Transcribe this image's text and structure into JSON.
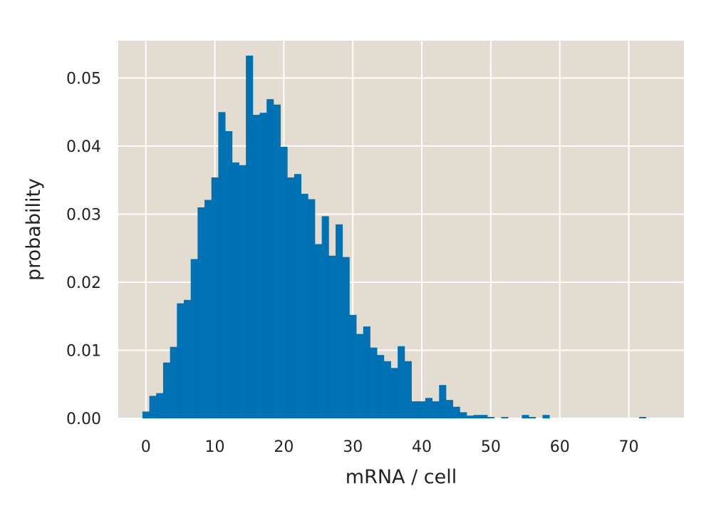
{
  "chart_data": {
    "type": "bar",
    "xlabel": "mRNA / cell",
    "ylabel": "probability",
    "xlim": [
      -4,
      78
    ],
    "ylim": [
      0,
      0.0555
    ],
    "xticks": [
      0,
      10,
      20,
      30,
      40,
      50,
      60,
      70
    ],
    "yticks": [
      0.0,
      0.01,
      0.02,
      0.03,
      0.04,
      0.05
    ],
    "ytick_labels": [
      "0.00",
      "0.01",
      "0.02",
      "0.03",
      "0.04",
      "0.05"
    ],
    "grid": true,
    "bin_start": -0.5,
    "bin_width": 1,
    "values": [
      0.001,
      0.0033,
      0.0037,
      0.0082,
      0.0105,
      0.0169,
      0.0174,
      0.0234,
      0.031,
      0.0321,
      0.0354,
      0.045,
      0.0422,
      0.0376,
      0.0372,
      0.0533,
      0.0446,
      0.0449,
      0.0469,
      0.0461,
      0.0399,
      0.0354,
      0.0359,
      0.033,
      0.0322,
      0.0256,
      0.0297,
      0.0239,
      0.0285,
      0.0237,
      0.0152,
      0.0124,
      0.0135,
      0.0104,
      0.0093,
      0.0084,
      0.0074,
      0.0106,
      0.0084,
      0.0025,
      0.0025,
      0.003,
      0.0025,
      0.0049,
      0.0027,
      0.0017,
      0.0009,
      0.0004,
      0.0005,
      0.0005,
      0.0002,
      0.0,
      0.0002,
      0.0,
      0.0,
      0.0005,
      0.0002,
      0.0,
      0.0005,
      0,
      0,
      0,
      0,
      0,
      0,
      0,
      0,
      0,
      0,
      0,
      0,
      0,
      0.0002
    ],
    "colors": {
      "bar": "#0071b2",
      "background": "#e3dcd0",
      "grid": "#ffffff"
    }
  }
}
